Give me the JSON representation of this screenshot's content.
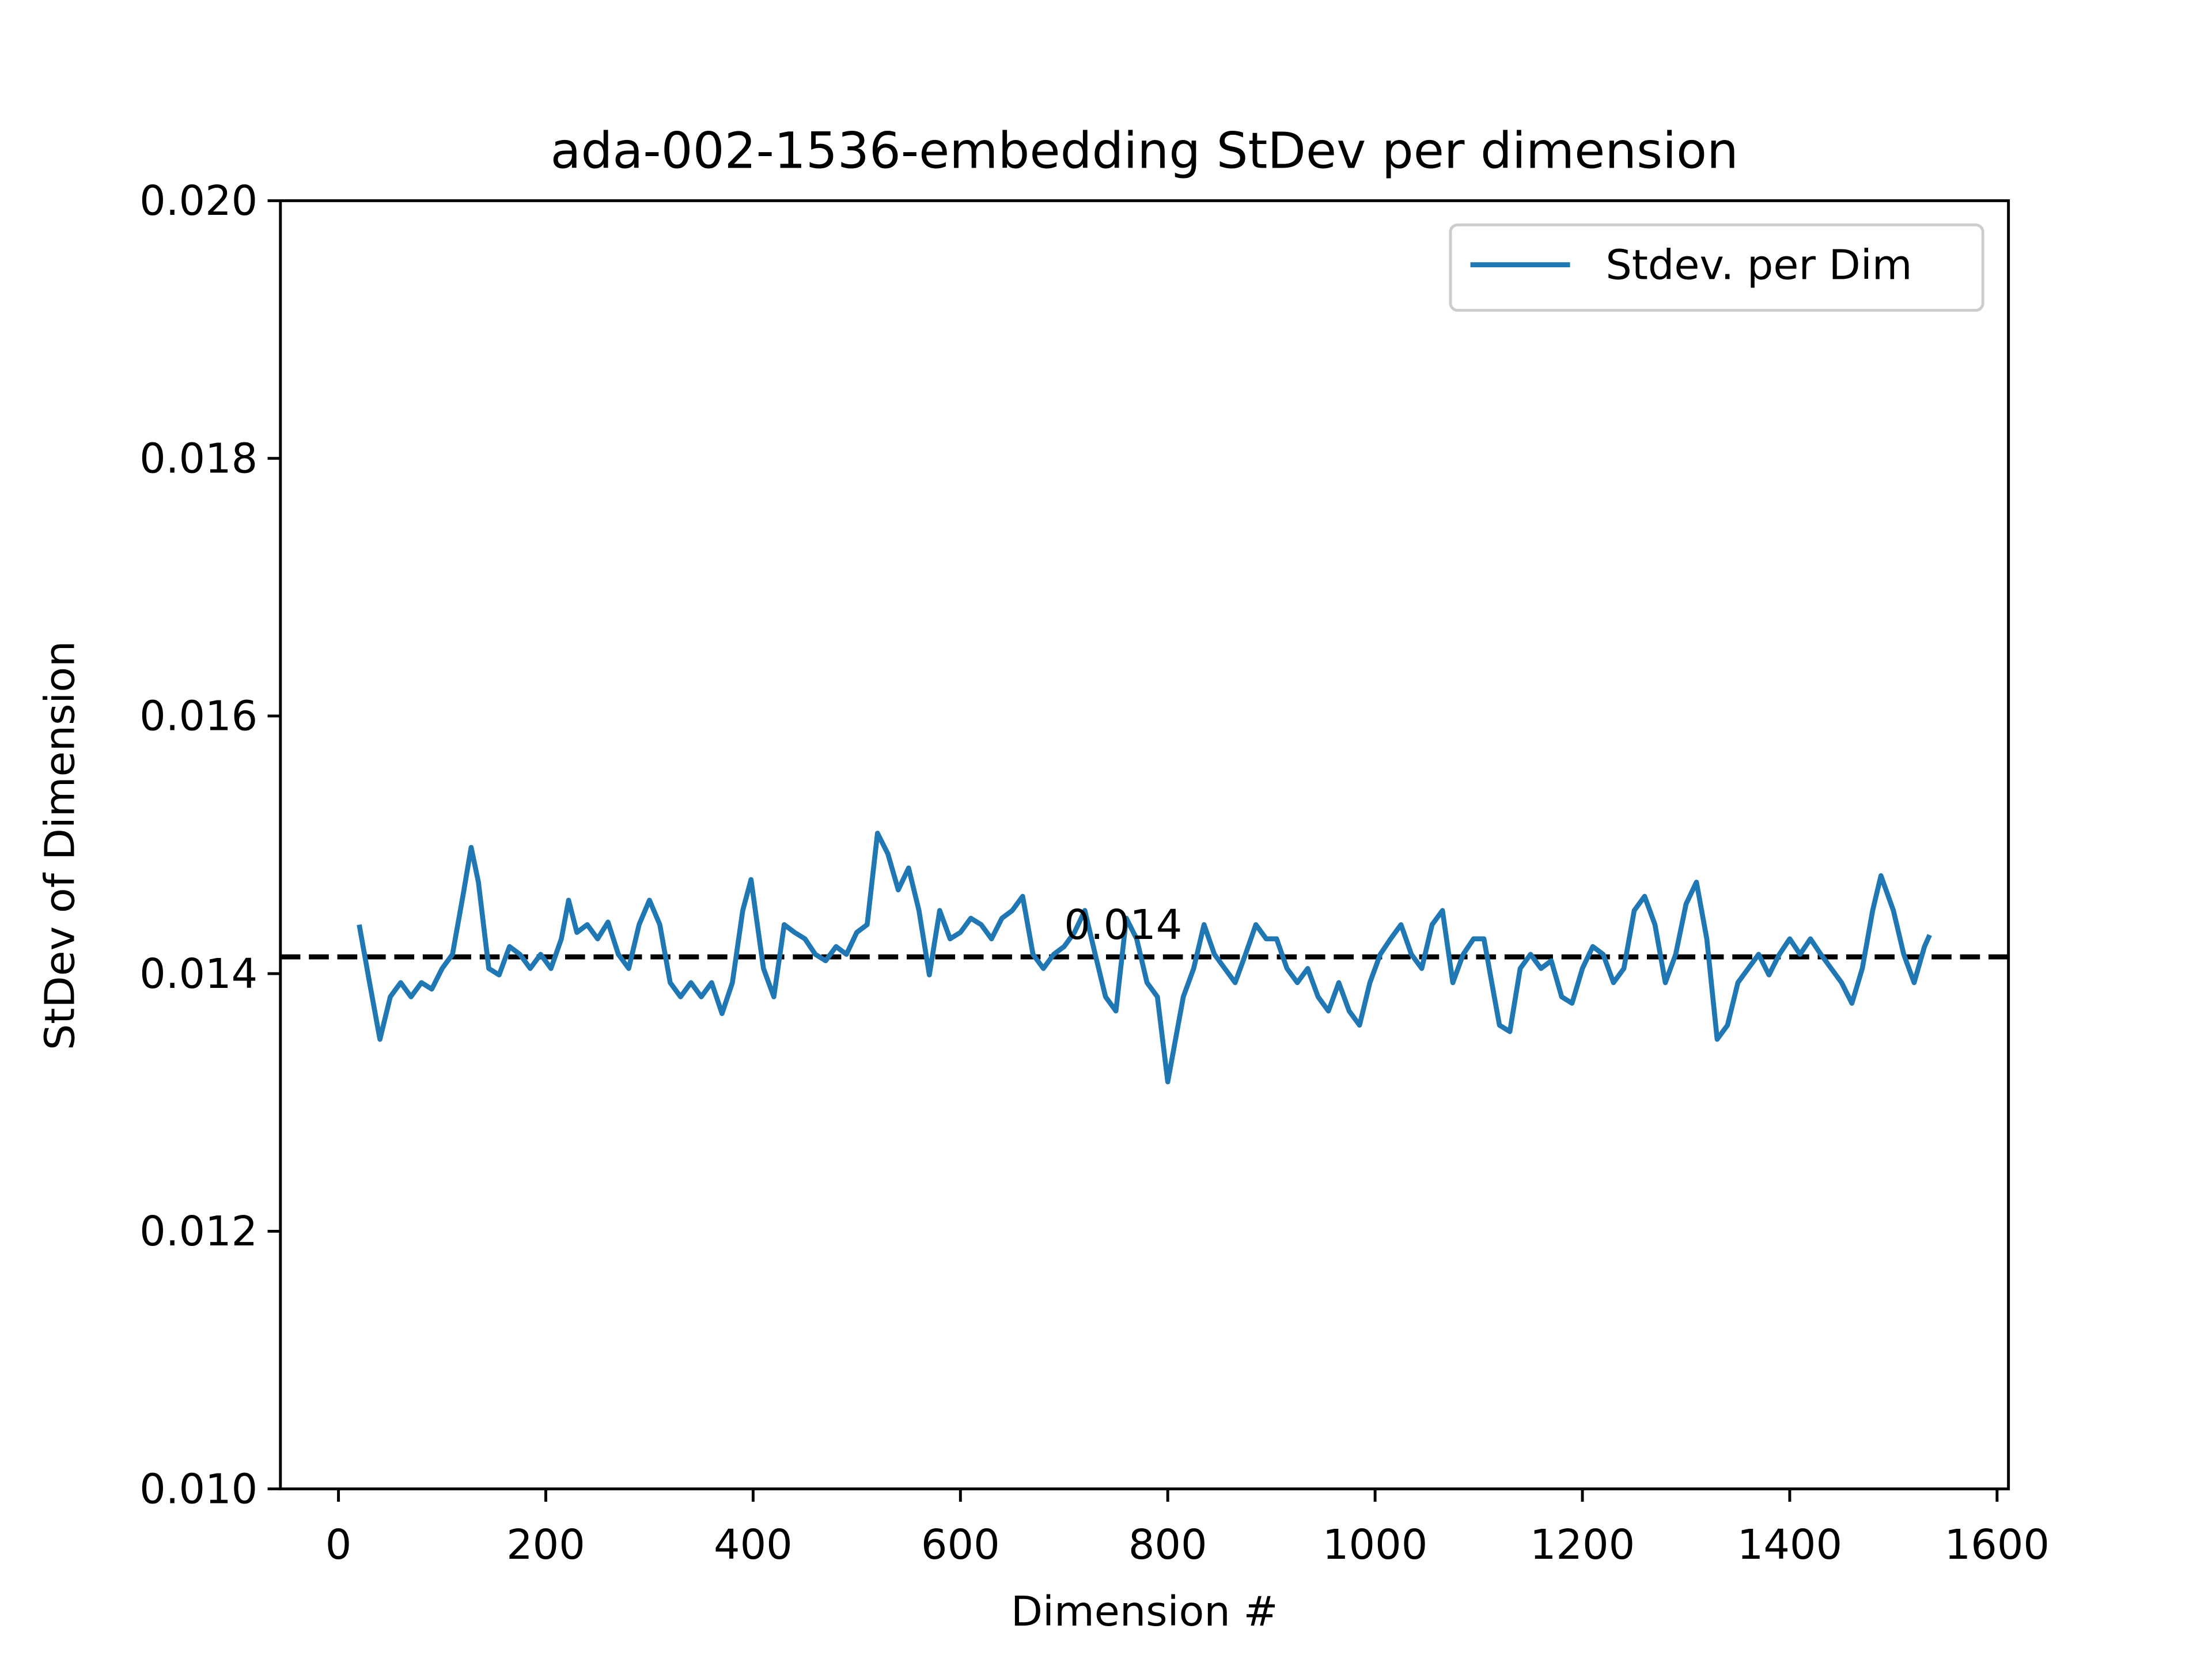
{
  "chart_data": {
    "type": "line",
    "title": "ada-002-1536-embedding StDev per dimension",
    "x_label": "Dimension #",
    "y_label": "StDev of Dimension",
    "xlim": [
      -56,
      1611
    ],
    "ylim": [
      0.01,
      0.02
    ],
    "xticks": [
      0,
      200,
      400,
      600,
      800,
      1000,
      1200,
      1400,
      1600
    ],
    "yticks": [
      {
        "value": 0.01,
        "label": "0.010"
      },
      0.012,
      0.014,
      0.016,
      0.018,
      {
        "value": 0.02,
        "label": "0.020"
      }
    ],
    "legend": "upper right",
    "x": [
      20,
      30,
      40,
      50,
      60,
      70,
      80,
      90,
      100,
      110,
      120,
      128,
      135,
      145,
      155,
      165,
      175,
      185,
      195,
      205,
      215,
      222,
      230,
      240,
      250,
      260,
      270,
      280,
      290,
      300,
      310,
      320,
      330,
      340,
      350,
      360,
      370,
      380,
      390,
      398,
      410,
      420,
      430,
      440,
      450,
      460,
      470,
      480,
      490,
      500,
      510,
      520,
      530,
      540,
      550,
      560,
      570,
      580,
      590,
      600,
      610,
      620,
      630,
      640,
      650,
      660,
      670,
      680,
      690,
      700,
      710,
      720,
      730,
      740,
      750,
      760,
      770,
      780,
      790,
      800,
      805,
      815,
      825,
      835,
      845,
      855,
      865,
      875,
      885,
      895,
      905,
      915,
      925,
      935,
      945,
      955,
      965,
      975,
      985,
      995,
      1005,
      1015,
      1025,
      1035,
      1045,
      1055,
      1065,
      1075,
      1085,
      1095,
      1105,
      1115,
      1120,
      1130,
      1140,
      1150,
      1160,
      1170,
      1180,
      1190,
      1200,
      1210,
      1220,
      1230,
      1240,
      1250,
      1260,
      1270,
      1280,
      1290,
      1300,
      1310,
      1320,
      1330,
      1340,
      1350,
      1360,
      1370,
      1380,
      1390,
      1400,
      1410,
      1420,
      1430,
      1440,
      1450,
      1460,
      1470,
      1480,
      1488,
      1500,
      1510,
      1520,
      1530,
      1535
    ],
    "series": [
      {
        "name": "Stdev. per Dim",
        "color": "#1f77b4",
        "values": [
          0.01438,
          0.01393,
          0.01349,
          0.01382,
          0.01393,
          0.01382,
          0.01393,
          0.01388,
          0.01404,
          0.01415,
          0.0146,
          0.01498,
          0.01471,
          0.01404,
          0.01399,
          0.01421,
          0.01415,
          0.01404,
          0.01415,
          0.01404,
          0.01427,
          0.01457,
          0.01432,
          0.01438,
          0.01427,
          0.0144,
          0.01415,
          0.01404,
          0.01438,
          0.01457,
          0.01438,
          0.01393,
          0.01382,
          0.01393,
          0.01382,
          0.01393,
          0.01369,
          0.01393,
          0.01449,
          0.01473,
          0.01404,
          0.01382,
          0.01438,
          0.01432,
          0.01427,
          0.01415,
          0.0141,
          0.01421,
          0.01415,
          0.01432,
          0.01438,
          0.01509,
          0.01493,
          0.01465,
          0.01482,
          0.01449,
          0.01399,
          0.01449,
          0.01427,
          0.01432,
          0.01443,
          0.01438,
          0.01427,
          0.01443,
          0.01449,
          0.0146,
          0.01415,
          0.01404,
          0.01415,
          0.01421,
          0.01432,
          0.01449,
          0.01415,
          0.01382,
          0.01371,
          0.01443,
          0.01427,
          0.01393,
          0.01382,
          0.01316,
          0.01338,
          0.01382,
          0.01404,
          0.01438,
          0.01415,
          0.01404,
          0.01393,
          0.01415,
          0.01438,
          0.01427,
          0.01427,
          0.01404,
          0.01393,
          0.01404,
          0.01382,
          0.01371,
          0.01393,
          0.01371,
          0.0136,
          0.01393,
          0.01415,
          0.01427,
          0.01438,
          0.01415,
          0.01404,
          0.01438,
          0.01449,
          0.01393,
          0.01415,
          0.01427,
          0.01427,
          0.01382,
          0.0136,
          0.01355,
          0.01404,
          0.01415,
          0.01404,
          0.0141,
          0.01382,
          0.01377,
          0.01404,
          0.01421,
          0.01415,
          0.01393,
          0.01404,
          0.01449,
          0.0146,
          0.01438,
          0.01393,
          0.01415,
          0.01454,
          0.01471,
          0.01427,
          0.01349,
          0.0136,
          0.01393,
          0.01404,
          0.01415,
          0.01399,
          0.01415,
          0.01427,
          0.01415,
          0.01427,
          0.01415,
          0.01404,
          0.01393,
          0.01377,
          0.01404,
          0.01449,
          0.01476,
          0.01449,
          0.01415,
          0.01393,
          0.01421,
          0.0143
        ]
      }
    ],
    "reference_line": {
      "value": 0.01413,
      "color": "#000000"
    },
    "annotation": {
      "text": "0.014",
      "x": 700,
      "y": 0.01427
    }
  }
}
